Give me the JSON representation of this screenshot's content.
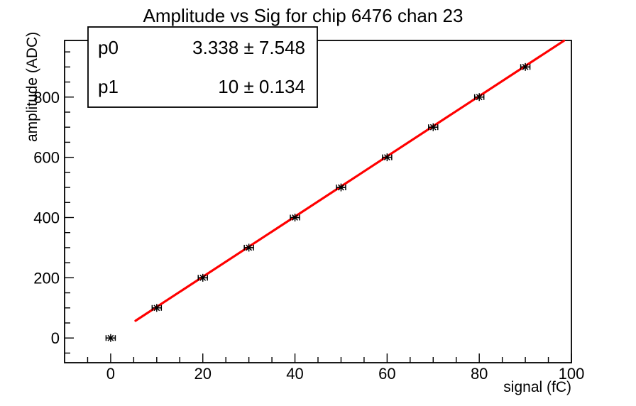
{
  "stats_box": {
    "rows": [
      {
        "param": "p0",
        "value": "3.338 ± 7.548"
      },
      {
        "param": "p1",
        "value": "10 ± 0.134"
      }
    ]
  },
  "chart_data": {
    "type": "scatter",
    "title": "Amplitude vs Sig for chip 6476 chan 23",
    "xlabel": "signal (fC)",
    "ylabel": "amplitude (ADC)",
    "xlim": [
      -10,
      100
    ],
    "ylim": [
      -82,
      988
    ],
    "x_ticks": [
      0,
      20,
      40,
      60,
      80,
      100
    ],
    "y_ticks": [
      0,
      200,
      400,
      600,
      800
    ],
    "x_minor_step": 5,
    "y_minor_step": 50,
    "grid": false,
    "legend_position": "none",
    "marker_style": "asterisk-with-x-error-bars",
    "points": [
      {
        "x": 0,
        "y": 0
      },
      {
        "x": 10,
        "y": 100
      },
      {
        "x": 20,
        "y": 200
      },
      {
        "x": 30,
        "y": 300
      },
      {
        "x": 40,
        "y": 400
      },
      {
        "x": 50,
        "y": 500
      },
      {
        "x": 60,
        "y": 600
      },
      {
        "x": 70,
        "y": 700
      },
      {
        "x": 80,
        "y": 800
      },
      {
        "x": 90,
        "y": 900
      }
    ],
    "x_error": 1,
    "fit": {
      "type": "linear",
      "p0": 3.338,
      "p0_err": 7.548,
      "p1": 10,
      "p1_err": 0.134,
      "x_range": [
        5.4,
        98.4
      ],
      "color": "#ff0000"
    },
    "colors": {
      "data": "#000000",
      "fit": "#ff0000",
      "background": "#ffffff"
    }
  }
}
